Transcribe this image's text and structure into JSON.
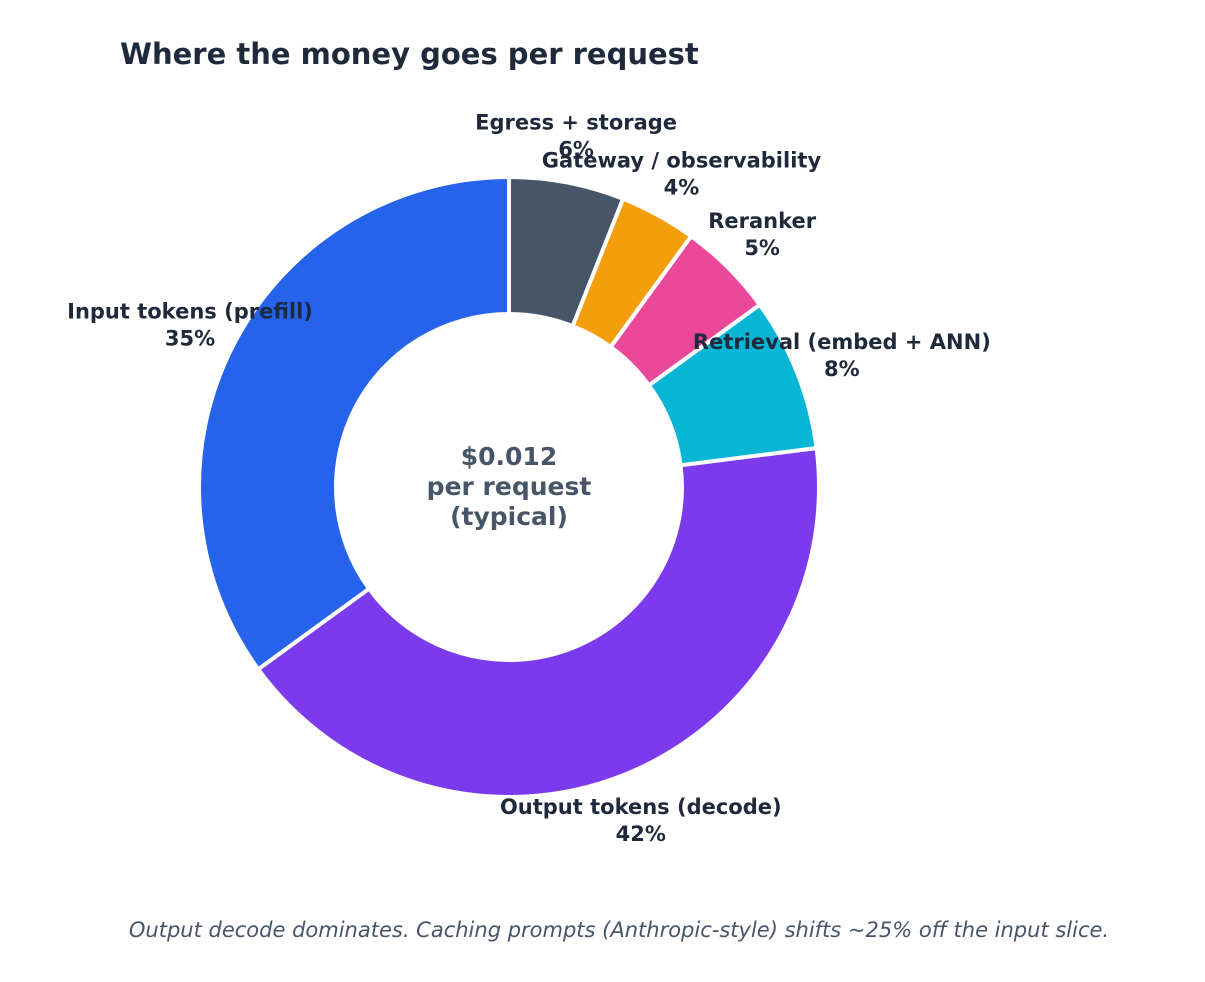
{
  "chart_data": {
    "type": "pie",
    "title": "Where the money goes per request",
    "center_label": [
      "$0.012",
      "per request",
      "(typical)"
    ],
    "caption": "Output decode dominates. Caching prompts (Anthropic-style) shifts ~25% off the input slice.",
    "unit": "%",
    "slices": [
      {
        "label": "Egress + storage",
        "value": 6,
        "value_label": "6%",
        "color": "#475569"
      },
      {
        "label": "Gateway / observability",
        "value": 4,
        "value_label": "4%",
        "color": "#f59e0b"
      },
      {
        "label": "Reranker",
        "value": 5,
        "value_label": "5%",
        "color": "#ec4899"
      },
      {
        "label": "Retrieval (embed + ANN)",
        "value": 8,
        "value_label": "8%",
        "color": "#06b6d4"
      },
      {
        "label": "Output tokens (decode)",
        "value": 42,
        "value_label": "42%",
        "color": "#7c3aed"
      },
      {
        "label": "Input tokens (prefill)",
        "value": 35,
        "value_label": "35%",
        "color": "#2563eb"
      }
    ]
  }
}
